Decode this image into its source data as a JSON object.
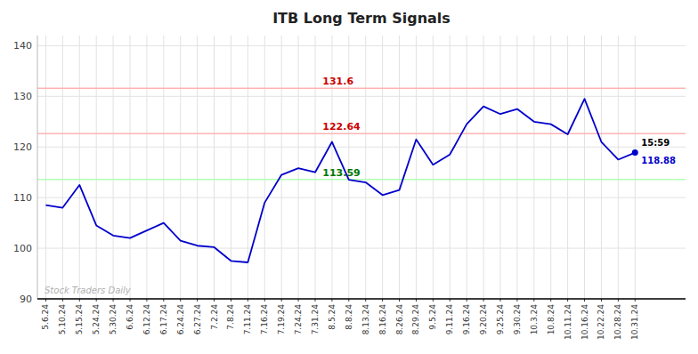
{
  "chart_data": {
    "type": "line",
    "title": "ITB Long Term Signals",
    "categories": [
      "5.6.24",
      "5.10.24",
      "5.15.24",
      "5.24.24",
      "5.30.24",
      "6.6.24",
      "6.12.24",
      "6.17.24",
      "6.24.24",
      "6.27.24",
      "7.2.24",
      "7.8.24",
      "7.11.24",
      "7.16.24",
      "7.19.24",
      "7.24.24",
      "7.31.24",
      "8.5.24",
      "8.8.24",
      "8.13.24",
      "8.16.24",
      "8.26.24",
      "8.29.24",
      "9.5.24",
      "9.11.24",
      "9.16.24",
      "9.20.24",
      "9.25.24",
      "9.30.24",
      "10.3.24",
      "10.8.24",
      "10.11.24",
      "10.16.24",
      "10.22.24",
      "10.28.24",
      "10.31.24"
    ],
    "values": [
      108.5,
      108.0,
      112.5,
      104.5,
      102.5,
      102.0,
      103.5,
      105.0,
      101.5,
      100.5,
      100.2,
      97.5,
      97.2,
      109.0,
      114.5,
      115.8,
      115.0,
      121.0,
      113.5,
      113.0,
      110.5,
      111.5,
      121.5,
      116.5,
      118.5,
      124.5,
      128.0,
      126.5,
      127.5,
      125.0,
      124.5,
      122.5,
      129.5,
      121.0,
      117.5,
      118.88
    ],
    "color": "#0000cc",
    "ylim": [
      90,
      142
    ],
    "yticks": [
      90,
      100,
      110,
      120,
      130,
      140
    ],
    "grid": true,
    "reference_lines": [
      {
        "value": 131.6,
        "label": "131.6",
        "color": "#ffb3b3",
        "label_color": "#cc0000"
      },
      {
        "value": 122.64,
        "label": "122.64",
        "color": "#ffb3b3",
        "label_color": "#cc0000"
      },
      {
        "value": 113.59,
        "label": "113.59",
        "color": "#b3ffb3",
        "label_color": "#007700"
      }
    ],
    "last_point": {
      "time_label": "15:59",
      "price_label": "118.88",
      "color": "#0000cc"
    },
    "watermark": "Stock Traders Daily",
    "watermark_color": "#b0b0b0"
  }
}
